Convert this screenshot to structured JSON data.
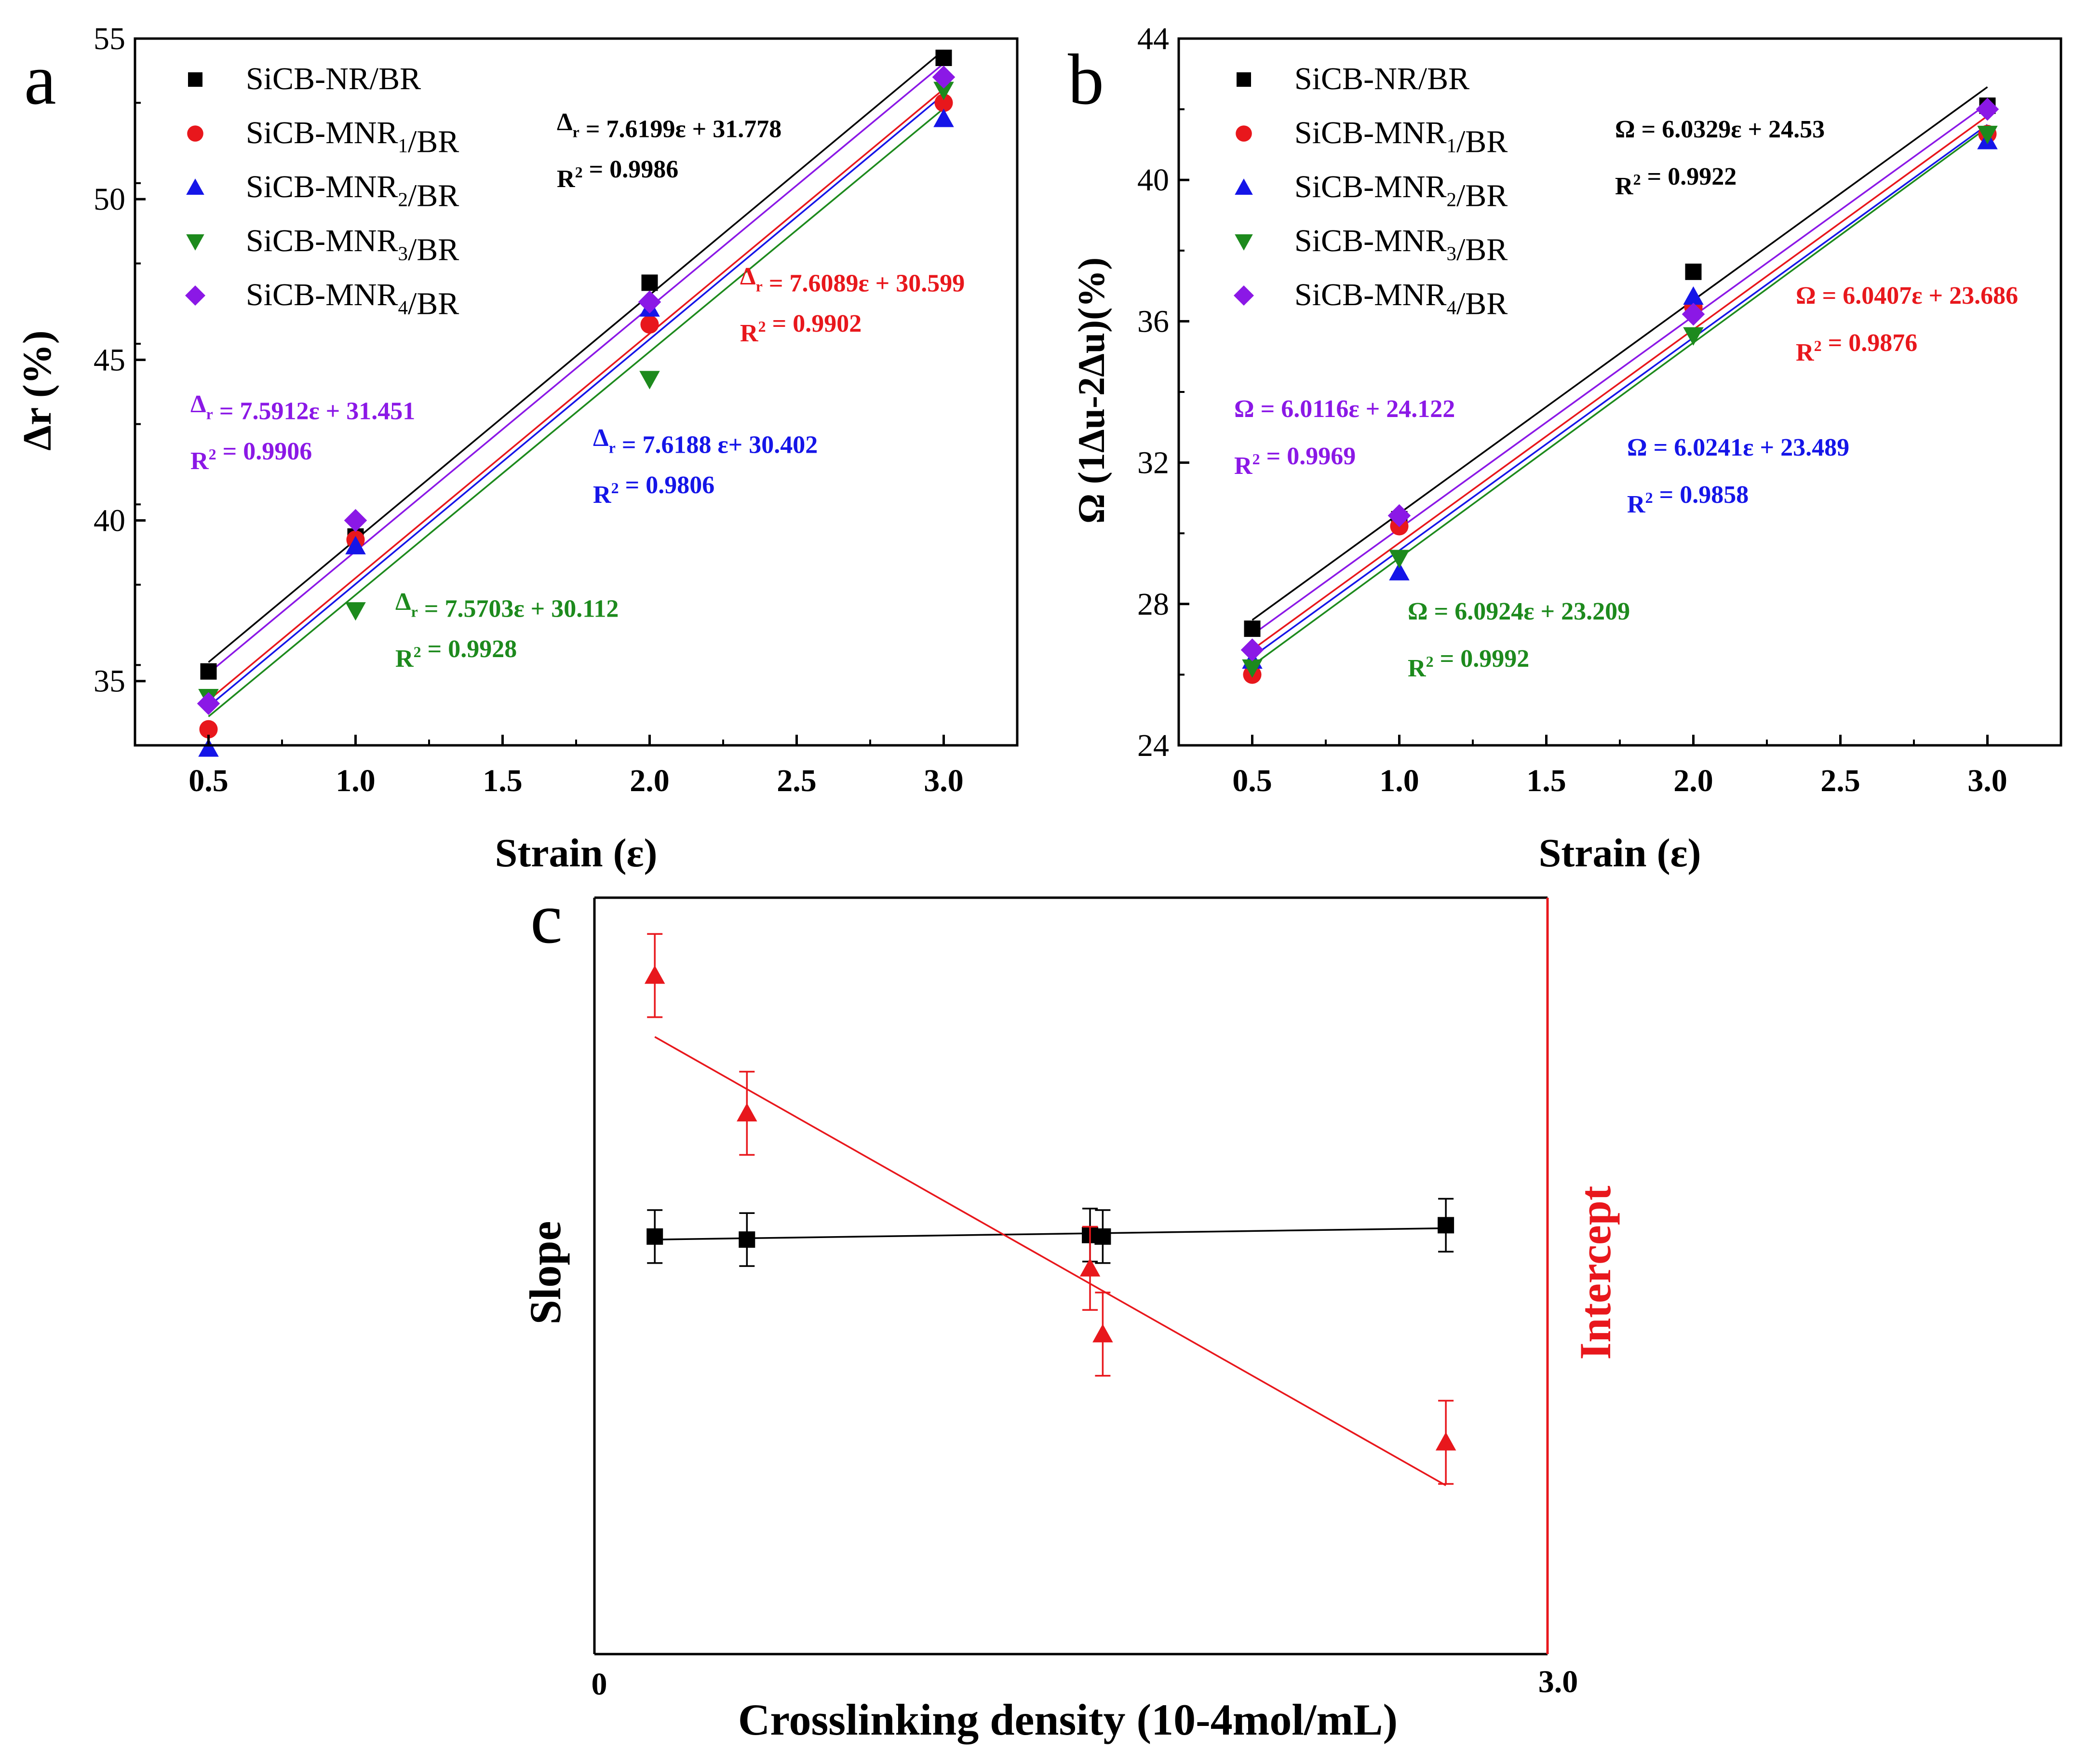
{
  "panel_labels": {
    "a": "a",
    "b": "b",
    "c": "c"
  },
  "legend_entries": [
    "SiCB-NR/BR",
    "SiCB-MNR1/BR",
    "SiCB-MNR2/BR",
    "SiCB-MNR3/BR",
    "SiCB-MNR4/BR"
  ],
  "colors": {
    "black": "#000000",
    "red": "#e8171c",
    "blue": "#1515e8",
    "green": "#1d8a1d",
    "purple": "#8b18e6"
  },
  "chart_data": [
    {
      "id": "a",
      "type": "scatter",
      "xlabel": "Strain (ε)",
      "ylabel": "Δr (%)",
      "xlim": [
        0.25,
        3.25
      ],
      "ylim": [
        33,
        55
      ],
      "xticks": [
        0.5,
        1.0,
        1.5,
        2.0,
        2.5,
        3.0
      ],
      "yticks": [
        35,
        40,
        45,
        50,
        55
      ],
      "x": [
        0.5,
        1.0,
        2.0,
        3.0
      ],
      "series": [
        {
          "name": "SiCB-NR/BR",
          "color": "#000000",
          "marker": "square",
          "values": [
            35.3,
            39.5,
            47.4,
            54.4
          ],
          "fit": {
            "slope": 7.6199,
            "intercept": 31.778,
            "equation": "Δr = 7.6199ε + 31.778",
            "r2": "R2 = 0.9986"
          }
        },
        {
          "name": "SiCB-MNR1/BR",
          "color": "#e8171c",
          "marker": "circle",
          "values": [
            33.5,
            39.4,
            46.1,
            53.0
          ],
          "fit": {
            "slope": 7.6089,
            "intercept": 30.599,
            "equation": "Δr = 7.6089ε + 30.599",
            "r2": "R2 = 0.9902"
          }
        },
        {
          "name": "SiCB-MNR2/BR",
          "color": "#1515e8",
          "marker": "triangle-up",
          "values": [
            32.9,
            39.2,
            46.6,
            52.5
          ],
          "fit": {
            "slope": 7.6188,
            "intercept": 30.402,
            "equation": "Δr = 7.6188 ε+ 30.402",
            "r2": "R2 = 0.9806"
          }
        },
        {
          "name": "SiCB-MNR3/BR",
          "color": "#1d8a1d",
          "marker": "triangle-down",
          "values": [
            34.5,
            37.2,
            44.4,
            53.4
          ],
          "fit": {
            "slope": 7.5703,
            "intercept": 30.112,
            "equation": "Δr = 7.5703ε + 30.112",
            "r2": "R2 = 0.9928"
          }
        },
        {
          "name": "SiCB-MNR4/BR",
          "color": "#8b18e6",
          "marker": "diamond",
          "values": [
            34.3,
            40.0,
            46.8,
            53.8
          ],
          "fit": {
            "slope": 7.5912,
            "intercept": 31.451,
            "equation": "Δr = 7.5912ε + 31.451",
            "r2": "R2 = 0.9906"
          }
        }
      ]
    },
    {
      "id": "b",
      "type": "scatter",
      "xlabel": "Strain (ε)",
      "ylabel": "Ω (1Δu-2Δu)(%)",
      "xlim": [
        0.25,
        3.25
      ],
      "ylim": [
        24,
        44
      ],
      "xticks": [
        0.5,
        1.0,
        1.5,
        2.0,
        2.5,
        3.0
      ],
      "yticks": [
        24,
        28,
        32,
        36,
        40,
        44
      ],
      "x": [
        0.5,
        1.0,
        2.0,
        3.0
      ],
      "series": [
        {
          "name": "SiCB-NR/BR",
          "color": "#000000",
          "marker": "square",
          "values": [
            27.3,
            30.4,
            37.4,
            42.1
          ],
          "fit": {
            "slope": 6.0329,
            "intercept": 24.53,
            "equation": "Ω = 6.0329ε + 24.53",
            "r2": "R2 = 0.9922"
          }
        },
        {
          "name": "SiCB-MNR1/BR",
          "color": "#e8171c",
          "marker": "circle",
          "values": [
            26.0,
            30.2,
            36.4,
            41.3
          ],
          "fit": {
            "slope": 6.0407,
            "intercept": 23.686,
            "equation": "Ω = 6.0407ε + 23.686",
            "r2": "R2 = 0.9876"
          }
        },
        {
          "name": "SiCB-MNR2/BR",
          "color": "#1515e8",
          "marker": "triangle-up",
          "values": [
            26.4,
            28.9,
            36.7,
            41.1
          ],
          "fit": {
            "slope": 6.0241,
            "intercept": 23.489,
            "equation": "Ω = 6.0241ε + 23.489",
            "r2": "R2 = 0.9858"
          }
        },
        {
          "name": "SiCB-MNR3/BR",
          "color": "#1d8a1d",
          "marker": "triangle-down",
          "values": [
            26.2,
            29.3,
            35.6,
            41.3
          ],
          "fit": {
            "slope": 6.0924,
            "intercept": 23.209,
            "equation": "Ω = 6.0924ε + 23.209",
            "r2": "R2 = 0.9992"
          }
        },
        {
          "name": "SiCB-MNR4/BR",
          "color": "#8b18e6",
          "marker": "diamond",
          "values": [
            26.7,
            30.5,
            36.2,
            42.0
          ],
          "fit": {
            "slope": 6.0116,
            "intercept": 24.122,
            "equation": "Ω = 6.0116ε + 24.122",
            "r2": "R2 = 0.9969"
          }
        }
      ]
    },
    {
      "id": "c",
      "type": "scatter",
      "xlabel": "Crosslinking density (10-4mol/mL)",
      "ylabel_left": "Slope",
      "ylabel_right": "Intercept",
      "xlim": [
        0,
        3.0
      ],
      "x_tick_labels": [
        "0",
        "3.0"
      ],
      "ylim": [
        0,
        100
      ],
      "series": [
        {
          "name": "Slope",
          "color": "#000000",
          "axis": "left",
          "marker": "square",
          "x": [
            0.19,
            0.48,
            1.56,
            1.6,
            2.68
          ],
          "values": [
            55.2,
            54.8,
            55.4,
            55.2,
            56.7
          ],
          "error": [
            3.5,
            3.5,
            3.5,
            3.5,
            3.5
          ],
          "fit": [
            [
              0.19,
              54.8
            ],
            [
              2.68,
              56.3
            ]
          ]
        },
        {
          "name": "Intercept",
          "color": "#e8171c",
          "axis": "right",
          "marker": "triangle-up",
          "x": [
            0.19,
            0.48,
            1.56,
            1.6,
            2.68
          ],
          "values": [
            89.7,
            71.5,
            51.0,
            42.3,
            28.0
          ],
          "error": [
            5.5,
            5.5,
            5.5,
            5.5,
            5.5
          ],
          "fit": [
            [
              0.19,
              81.6
            ],
            [
              2.68,
              22.3
            ]
          ]
        }
      ]
    }
  ]
}
